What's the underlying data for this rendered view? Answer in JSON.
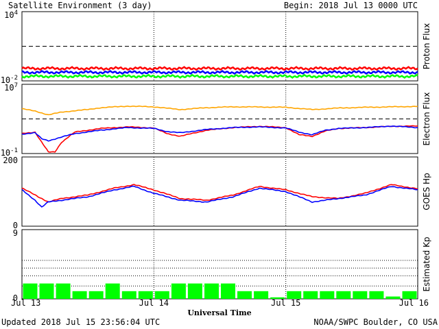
{
  "header": {
    "title": "Satellite Environment (3 day)",
    "begin": "Begin:  2018 Jul 13 0000 UTC"
  },
  "footer": {
    "updated": "Updated 2018 Jul 15 23:56:04 UTC",
    "credit": "NOAA/SWPC Boulder, CO USA"
  },
  "chart_data": [
    {
      "type": "line",
      "name": "proton",
      "ylabel": "Proton Flux",
      "scale": "log",
      "ylim": [
        0.01,
        10000
      ],
      "yticks": [
        {
          "base": "10",
          "exp": "4"
        },
        {
          "base": "10",
          "exp": "-2"
        }
      ],
      "threshold": 10,
      "series": [
        {
          "color": "#ff0000",
          "level": 0.12
        },
        {
          "color": "#0000ff",
          "level": 0.055
        },
        {
          "color": "#00ff00",
          "level": 0.025
        }
      ]
    },
    {
      "type": "line",
      "name": "electron",
      "ylabel": "Electron Flux",
      "scale": "log",
      "ylim": [
        0.1,
        10000000
      ],
      "yticks": [
        {
          "base": "10",
          "exp": "7"
        },
        {
          "base": "10",
          "exp": "-1"
        }
      ],
      "threshold": 1000,
      "series": [
        {
          "color": "#ffa500",
          "x": [
            0,
            0.1,
            0.2,
            0.3,
            0.4,
            0.5,
            0.6,
            0.8,
            1,
            1.2,
            1.4,
            1.6,
            1.8,
            2,
            2.2,
            2.4,
            2.6,
            2.8,
            3
          ],
          "y": [
            15000,
            8000,
            3000,
            6000,
            9000,
            12000,
            20000,
            30000,
            25000,
            12000,
            20000,
            25000,
            24000,
            22000,
            12000,
            18000,
            22000,
            25000,
            28000
          ]
        },
        {
          "color": "#ff0000",
          "x": [
            0,
            0.1,
            0.15,
            0.2,
            0.25,
            0.3,
            0.4,
            0.6,
            0.8,
            1,
            1.1,
            1.2,
            1.4,
            1.6,
            1.8,
            2,
            2.1,
            2.2,
            2.3,
            2.4,
            2.6,
            2.8,
            3
          ],
          "y": [
            20,
            30,
            2,
            0.15,
            0.15,
            2,
            30,
            80,
            120,
            90,
            20,
            10,
            50,
            100,
            140,
            100,
            15,
            10,
            40,
            80,
            100,
            140,
            150
          ]
        },
        {
          "color": "#0000ff",
          "x": [
            0,
            0.1,
            0.15,
            0.2,
            0.3,
            0.4,
            0.6,
            0.8,
            1,
            1.1,
            1.2,
            1.4,
            1.6,
            1.8,
            2,
            2.1,
            2.2,
            2.3,
            2.4,
            2.6,
            2.8,
            3
          ],
          "y": [
            18,
            25,
            5,
            3,
            8,
            20,
            50,
            100,
            80,
            35,
            25,
            60,
            100,
            120,
            90,
            30,
            15,
            50,
            80,
            100,
            150,
            100
          ]
        }
      ]
    },
    {
      "type": "line",
      "name": "goes",
      "ylabel": "GOES Hp",
      "ylim": [
        0,
        200
      ],
      "yticks": [
        {
          "v": "200"
        },
        {
          "v": "0"
        }
      ],
      "series": [
        {
          "color": "#ff0000",
          "x": [
            0,
            0.1,
            0.2,
            0.3,
            0.5,
            0.7,
            0.85,
            1,
            1.2,
            1.4,
            1.6,
            1.8,
            2,
            2.2,
            2.4,
            2.6,
            2.8,
            3
          ],
          "y": [
            110,
            90,
            70,
            80,
            90,
            110,
            120,
            105,
            80,
            75,
            90,
            115,
            105,
            85,
            80,
            95,
            120,
            108
          ]
        },
        {
          "color": "#0000ff",
          "x": [
            0,
            0.1,
            0.15,
            0.2,
            0.3,
            0.5,
            0.7,
            0.85,
            1,
            1.2,
            1.4,
            1.6,
            1.8,
            2,
            2.2,
            2.4,
            2.6,
            2.8,
            3
          ],
          "y": [
            105,
            75,
            55,
            70,
            75,
            85,
            105,
            115,
            95,
            75,
            70,
            85,
            110,
            100,
            70,
            80,
            90,
            115,
            105
          ]
        }
      ]
    },
    {
      "type": "bar",
      "name": "kp",
      "ylabel": "Estimated Kp",
      "ylim": [
        0,
        9
      ],
      "yticks": [
        {
          "v": "9"
        },
        {
          "v": "0"
        }
      ],
      "gridlines": [
        5,
        4,
        3,
        1.67
      ],
      "color": "#00ff00",
      "values": [
        2,
        2,
        2,
        1,
        1,
        2,
        1,
        1,
        1,
        2,
        2,
        2,
        2,
        1,
        1,
        0.2,
        1,
        1,
        1,
        1,
        1,
        1,
        0.3,
        1
      ],
      "xticks": [
        "Jul 13",
        "Jul 14",
        "Jul 15",
        "Jul 16"
      ],
      "xlabel": "Universal Time"
    }
  ]
}
